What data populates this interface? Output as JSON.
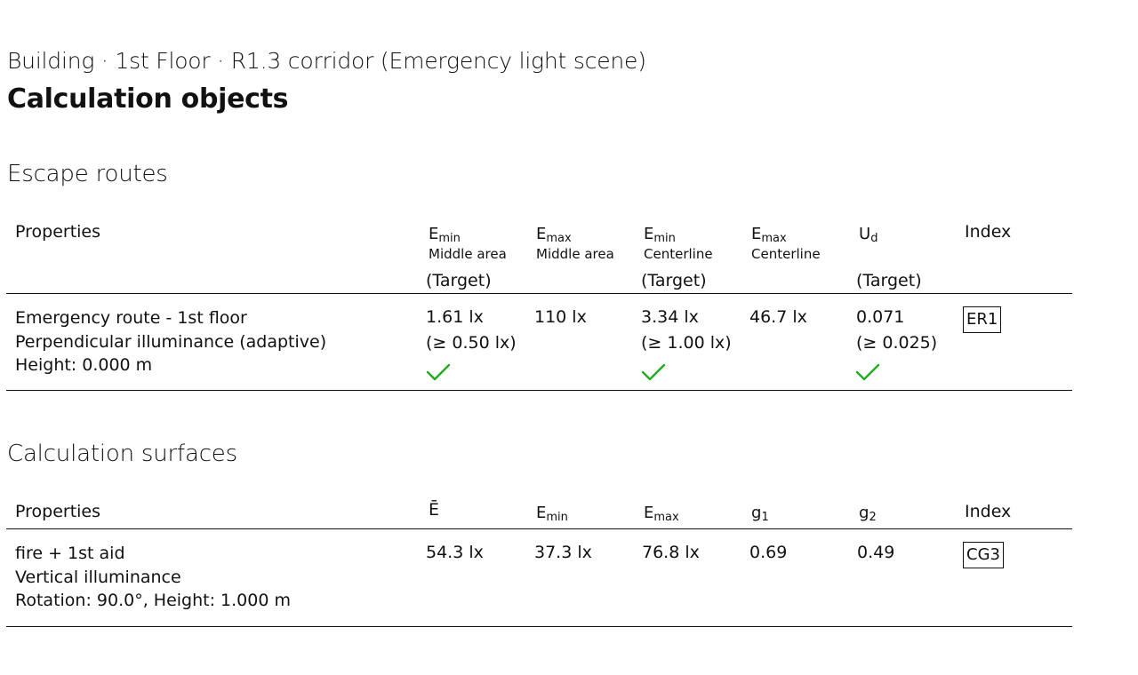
{
  "header": {
    "breadcrumb": "Building · 1st Floor · R1.3 corridor (Emergency light scene)",
    "title": "Calculation objects"
  },
  "escape_routes": {
    "section_title": "Escape routes",
    "columns": {
      "properties": "Properties",
      "emin_mid": {
        "symbol": "E",
        "sub": "min",
        "label": "Middle area",
        "target": "(Target)"
      },
      "emax_mid": {
        "symbol": "E",
        "sub": "max",
        "label": "Middle area"
      },
      "emin_center": {
        "symbol": "E",
        "sub": "min",
        "label": "Centerline",
        "target": "(Target)"
      },
      "emax_center": {
        "symbol": "E",
        "sub": "max",
        "label": "Centerline"
      },
      "ud": {
        "symbol": "U",
        "sub": "d",
        "target": "(Target)"
      },
      "index": "Index"
    },
    "row": {
      "name": "Emergency route - 1st floor",
      "type": "Perpendicular illuminance (adaptive)",
      "height": "Height: 0.000 m",
      "emin_mid": "1.61 lx",
      "emin_mid_target": "(≥ 0.50 lx)",
      "emax_mid": "110 lx",
      "emin_center": "3.34 lx",
      "emin_center_target": "(≥ 1.00 lx)",
      "emax_center": "46.7 lx",
      "ud": "0.071",
      "ud_target": "(≥ 0.025)",
      "index": "ER1",
      "check_color": "#22aa22"
    }
  },
  "calc_surfaces": {
    "section_title": "Calculation surfaces",
    "columns": {
      "properties": "Properties",
      "e_avg": "Ē",
      "emin": {
        "symbol": "E",
        "sub": "min"
      },
      "emax": {
        "symbol": "E",
        "sub": "max"
      },
      "g1": {
        "symbol": "g",
        "sub": "1"
      },
      "g2": {
        "symbol": "g",
        "sub": "2"
      },
      "index": "Index"
    },
    "row": {
      "name": "fire + 1st aid",
      "type": "Vertical illuminance",
      "placement": "Rotation: 90.0°, Height: 1.000 m",
      "e_avg": "54.3 lx",
      "emin": "37.3 lx",
      "emax": "76.8 lx",
      "g1": "0.69",
      "g2": "0.49",
      "index": "CG3"
    }
  }
}
